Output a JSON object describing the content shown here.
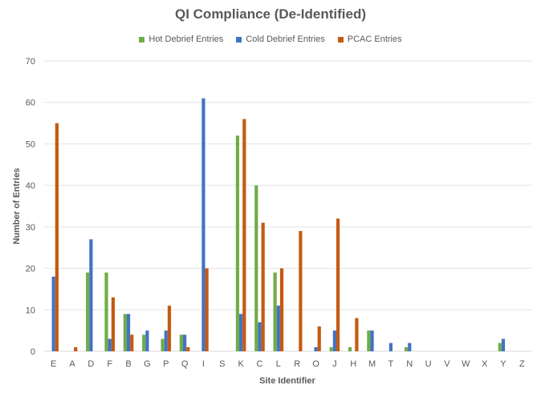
{
  "chart_data": {
    "type": "bar",
    "title": "QI Compliance (De-Identified)",
    "xlabel": "Site Identifier",
    "ylabel": "Number of Entries",
    "ylim": [
      0,
      70
    ],
    "yticks": [
      0,
      10,
      20,
      30,
      40,
      50,
      60,
      70
    ],
    "grid": true,
    "legend_position": "top",
    "categories": [
      "E",
      "A",
      "D",
      "F",
      "B",
      "G",
      "P",
      "Q",
      "I",
      "S",
      "K",
      "C",
      "L",
      "R",
      "O",
      "J",
      "H",
      "M",
      "T",
      "N",
      "U",
      "V",
      "W",
      "X",
      "Y",
      "Z"
    ],
    "series": [
      {
        "name": "Hot Debrief Entries",
        "color": "#70ad47",
        "values": [
          0,
          0,
          19,
          19,
          9,
          4,
          3,
          4,
          0,
          0,
          52,
          40,
          19,
          0,
          0,
          1,
          1,
          5,
          0,
          1,
          0,
          0,
          0,
          0,
          2,
          0
        ]
      },
      {
        "name": "Cold Debrief Entries",
        "color": "#4472c4",
        "values": [
          18,
          0,
          27,
          3,
          9,
          5,
          5,
          4,
          61,
          0,
          9,
          7,
          11,
          0,
          1,
          5,
          0,
          5,
          2,
          2,
          0,
          0,
          0,
          0,
          3,
          0
        ]
      },
      {
        "name": "PCAC Entries",
        "color": "#c55a11",
        "values": [
          55,
          1,
          0,
          13,
          4,
          0,
          11,
          1,
          20,
          0,
          56,
          31,
          20,
          29,
          6,
          32,
          8,
          0,
          0,
          0,
          0,
          0,
          0,
          0,
          0,
          0
        ]
      }
    ]
  }
}
